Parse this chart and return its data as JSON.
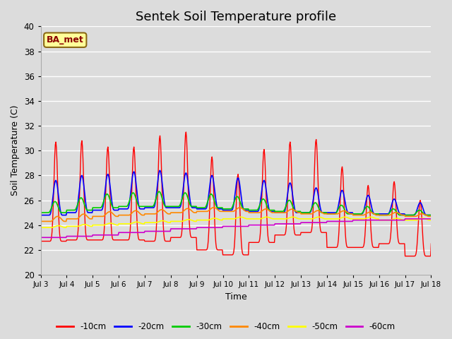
{
  "title": "Sentek Soil Temperature profile",
  "xlabel": "Time",
  "ylabel": "Soil Temperature (C)",
  "ylim": [
    20,
    40
  ],
  "xlim_days": [
    0,
    15
  ],
  "bg_color": "#dcdcdc",
  "plot_bg_color": "#dcdcdc",
  "annotation_text": "BA_met",
  "annotation_bg": "#ffff99",
  "annotation_border": "#8B6914",
  "annotation_text_color": "#8B0000",
  "series_colors": {
    "-10cm": "#ff0000",
    "-20cm": "#0000ff",
    "-30cm": "#00cc00",
    "-40cm": "#ff8800",
    "-50cm": "#ffff00",
    "-60cm": "#cc00cc"
  },
  "xtick_labels": [
    "Jul 3",
    "Jul 4",
    "Jul 5",
    "Jul 6",
    "Jul 7",
    "Jul 8",
    "Jul 9",
    "Jul 10",
    "Jul 11",
    "Jul 12",
    "Jul 13",
    "Jul 14",
    "Jul 15",
    "Jul 16",
    "Jul 17",
    "Jul 18"
  ],
  "xtick_positions": [
    0,
    1,
    2,
    3,
    4,
    5,
    6,
    7,
    8,
    9,
    10,
    11,
    12,
    13,
    14,
    15
  ],
  "n_days": 15,
  "pts_per_day": 48,
  "peak_amps_10cm": [
    8.0,
    8.0,
    7.5,
    7.5,
    8.5,
    8.5,
    7.5,
    6.5,
    7.5,
    7.5,
    7.5,
    6.5,
    5.0,
    5.0,
    4.5,
    3.5
  ],
  "trough_10cm": [
    22.7,
    22.8,
    22.8,
    22.8,
    22.7,
    23.0,
    22.0,
    21.6,
    22.6,
    23.2,
    23.4,
    22.2,
    22.2,
    22.5,
    21.5,
    22.5
  ],
  "peak_amps_20cm": [
    2.8,
    3.0,
    2.9,
    3.0,
    3.0,
    2.8,
    2.7,
    2.6,
    2.5,
    2.4,
    2.0,
    1.8,
    1.5,
    1.2,
    1.0,
    0.8
  ],
  "base_20cm": [
    24.8,
    25.0,
    25.2,
    25.3,
    25.4,
    25.4,
    25.3,
    25.2,
    25.1,
    25.0,
    25.0,
    25.0,
    24.9,
    24.9,
    24.8,
    24.8
  ],
  "peak_amps_30cm": [
    0.9,
    1.0,
    1.1,
    1.1,
    1.2,
    1.1,
    1.1,
    1.0,
    0.9,
    0.9,
    0.8,
    0.7,
    0.6,
    0.5,
    0.4,
    0.3
  ],
  "base_30cm": [
    25.0,
    25.2,
    25.4,
    25.5,
    25.5,
    25.5,
    25.4,
    25.3,
    25.2,
    25.1,
    25.0,
    24.9,
    24.9,
    24.8,
    24.8,
    24.8
  ],
  "base_40cm": [
    24.3,
    24.5,
    24.7,
    24.8,
    24.9,
    25.0,
    25.1,
    25.1,
    25.0,
    25.0,
    24.9,
    24.9,
    24.8,
    24.8,
    24.7,
    24.7
  ],
  "base_50cm": [
    23.8,
    23.9,
    24.0,
    24.1,
    24.2,
    24.3,
    24.4,
    24.5,
    24.5,
    24.5,
    24.5,
    24.5,
    24.5,
    24.4,
    24.4,
    24.4
  ],
  "base_60cm": [
    23.0,
    23.1,
    23.2,
    23.4,
    23.5,
    23.7,
    23.8,
    23.9,
    24.0,
    24.1,
    24.2,
    24.3,
    24.4,
    24.4,
    24.5,
    24.5
  ]
}
